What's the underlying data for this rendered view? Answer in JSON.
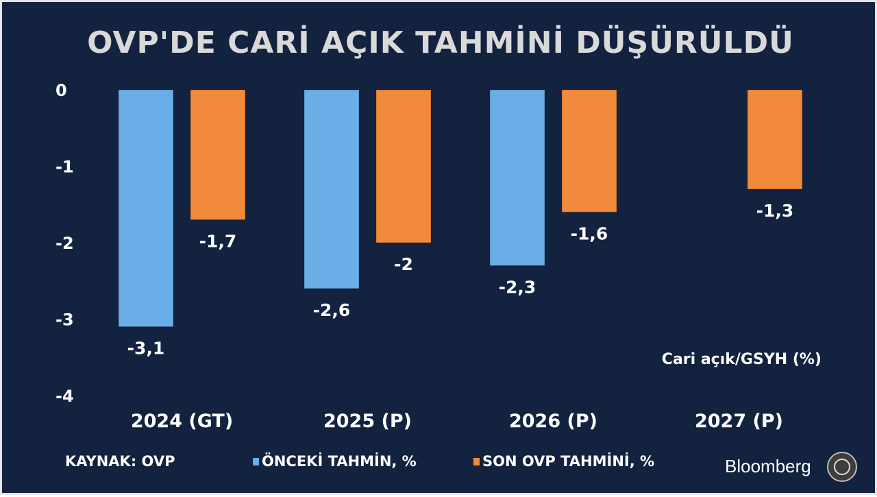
{
  "chart_data": {
    "type": "bar",
    "title": "OVP'DE CARİ AÇIK TAHMİNİ DÜŞÜRÜLDÜ",
    "categories": [
      "2024 (GT)",
      "2025 (P)",
      "2026 (P)",
      "2027 (P)"
    ],
    "series": [
      {
        "name": "ÖNCEKİ TAHMİN, %",
        "values": [
          -3.1,
          -2.6,
          -2.3,
          null
        ],
        "labels": [
          "-3,1",
          "-2,6",
          "-2,3",
          ""
        ],
        "color": "#6aaee8"
      },
      {
        "name": "SON OVP TAHMİNİ, %",
        "values": [
          -1.7,
          -2.0,
          -1.6,
          -1.3
        ],
        "labels": [
          "-1,7",
          "-2",
          "-1,6",
          "-1,3"
        ],
        "color": "#f28a3c"
      }
    ],
    "ylim": [
      -4,
      0
    ],
    "yticks": [
      0,
      -1,
      -2,
      -3,
      -4
    ],
    "ytick_labels": [
      "0",
      "-1",
      "-2",
      "-3",
      "-4"
    ],
    "annotation": "Cari açık/GSYH (%)",
    "grid": false,
    "legend_position": "bottom"
  },
  "footer": {
    "source": "KAYNAK: OVP",
    "brand": "Bloomberg"
  },
  "colors": {
    "background": "#13223f",
    "text": "#ffffff",
    "title": "#d9d9d9"
  }
}
